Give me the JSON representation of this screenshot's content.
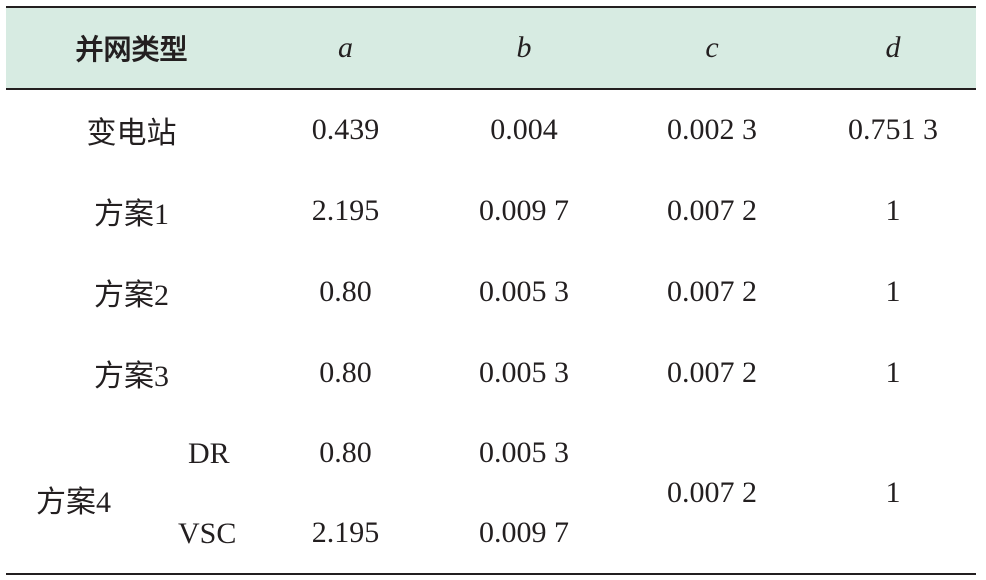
{
  "header": {
    "type_label": "并网类型",
    "a": "a",
    "b": "b",
    "c": "c",
    "d": "d"
  },
  "rows": [
    {
      "name": "变电站",
      "a": "0.439",
      "b": "0.004",
      "c": "0.002 3",
      "d": "0.751 3"
    },
    {
      "name": "方案1",
      "a": "2.195",
      "b": "0.009 7",
      "c": "0.007 2",
      "d": "1"
    },
    {
      "name": "方案2",
      "a": "0.80",
      "b": "0.005 3",
      "c": "0.007 2",
      "d": "1"
    },
    {
      "name": "方案3",
      "a": "0.80",
      "b": "0.005 3",
      "c": "0.007 2",
      "d": "1"
    }
  ],
  "group": {
    "name": "方案4",
    "sub": [
      {
        "name": "DR",
        "a": "0.80",
        "b": "0.005 3"
      },
      {
        "name": "VSC",
        "a": "2.195",
        "b": "0.009 7"
      }
    ],
    "c": "0.007 2",
    "d": "1"
  }
}
